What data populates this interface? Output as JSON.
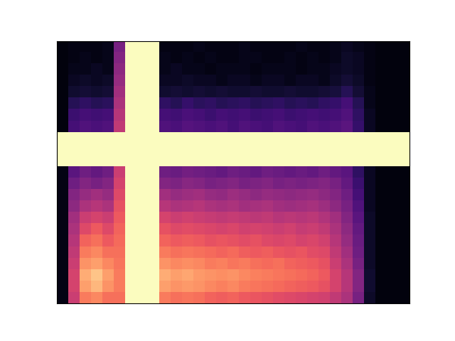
{
  "chart_data": {
    "type": "heatmap",
    "color": "magma",
    "tick_labels": false,
    "color_range": [
      0,
      80
    ],
    "cells": [
      [
        2,
        3,
        3,
        3,
        4,
        28,
        80,
        80,
        80,
        3,
        3,
        3,
        4,
        3,
        3,
        3,
        4,
        3,
        3,
        3,
        3,
        4,
        3,
        3,
        4,
        5,
        4,
        3,
        2,
        2,
        2
      ],
      [
        2,
        3,
        4,
        3,
        4,
        30,
        80,
        80,
        80,
        4,
        3,
        4,
        3,
        4,
        3,
        3,
        4,
        4,
        3,
        3,
        4,
        3,
        4,
        3,
        4,
        6,
        5,
        3,
        2,
        2,
        2
      ],
      [
        2,
        4,
        4,
        5,
        4,
        32,
        80,
        80,
        80,
        4,
        5,
        4,
        4,
        3,
        4,
        4,
        4,
        3,
        4,
        4,
        4,
        3,
        4,
        4,
        5,
        6,
        5,
        3,
        2,
        2,
        2
      ],
      [
        2,
        5,
        6,
        5,
        6,
        34,
        80,
        80,
        80,
        5,
        5,
        6,
        5,
        5,
        4,
        5,
        5,
        4,
        5,
        5,
        4,
        5,
        5,
        4,
        6,
        8,
        6,
        3,
        2,
        2,
        2
      ],
      [
        2,
        7,
        8,
        7,
        8,
        36,
        80,
        80,
        80,
        7,
        8,
        7,
        8,
        7,
        8,
        7,
        7,
        8,
        7,
        7,
        8,
        7,
        7,
        8,
        9,
        12,
        8,
        4,
        2,
        2,
        2
      ],
      [
        2,
        12,
        14,
        12,
        13,
        38,
        80,
        80,
        80,
        14,
        12,
        15,
        13,
        14,
        12,
        13,
        14,
        12,
        13,
        14,
        12,
        13,
        12,
        14,
        15,
        18,
        12,
        4,
        2,
        2,
        2
      ],
      [
        2,
        16,
        18,
        17,
        18,
        40,
        80,
        80,
        80,
        18,
        17,
        19,
        18,
        16,
        18,
        17,
        18,
        16,
        17,
        18,
        16,
        17,
        18,
        17,
        18,
        20,
        14,
        5,
        2,
        2,
        2
      ],
      [
        2,
        18,
        20,
        19,
        20,
        42,
        80,
        80,
        80,
        20,
        19,
        21,
        20,
        19,
        20,
        18,
        20,
        19,
        18,
        20,
        19,
        18,
        20,
        19,
        20,
        22,
        15,
        5,
        2,
        2,
        2
      ],
      [
        80,
        80,
        80,
        80,
        80,
        80,
        80,
        80,
        80,
        80,
        80,
        80,
        80,
        80,
        80,
        80,
        80,
        80,
        80,
        80,
        80,
        80,
        80,
        80,
        80,
        80,
        80,
        80,
        80,
        80,
        80
      ],
      [
        80,
        80,
        80,
        80,
        80,
        80,
        80,
        80,
        80,
        80,
        80,
        80,
        80,
        80,
        80,
        80,
        80,
        80,
        80,
        80,
        80,
        80,
        80,
        80,
        80,
        80,
        80,
        80,
        80,
        80,
        80
      ],
      [
        80,
        80,
        80,
        80,
        80,
        80,
        80,
        80,
        80,
        80,
        80,
        80,
        80,
        80,
        80,
        80,
        80,
        80,
        80,
        80,
        80,
        80,
        80,
        80,
        80,
        80,
        80,
        80,
        80,
        80,
        80
      ],
      [
        3,
        22,
        26,
        24,
        26,
        44,
        80,
        80,
        80,
        26,
        25,
        27,
        26,
        25,
        24,
        26,
        25,
        24,
        26,
        25,
        24,
        25,
        24,
        26,
        24,
        22,
        14,
        5,
        2,
        2,
        2
      ],
      [
        3,
        26,
        30,
        28,
        30,
        46,
        80,
        80,
        80,
        30,
        29,
        31,
        30,
        28,
        29,
        30,
        28,
        29,
        30,
        28,
        29,
        28,
        29,
        30,
        28,
        24,
        16,
        5,
        2,
        2,
        2
      ],
      [
        3,
        30,
        34,
        36,
        34,
        48,
        80,
        80,
        80,
        36,
        34,
        35,
        36,
        34,
        33,
        35,
        34,
        32,
        34,
        33,
        32,
        33,
        34,
        32,
        30,
        26,
        18,
        5,
        2,
        2,
        2
      ],
      [
        3,
        32,
        38,
        40,
        38,
        50,
        80,
        80,
        80,
        40,
        38,
        39,
        40,
        38,
        37,
        38,
        36,
        37,
        38,
        36,
        35,
        36,
        37,
        35,
        32,
        28,
        20,
        5,
        2,
        2,
        2
      ],
      [
        3,
        36,
        44,
        46,
        44,
        52,
        80,
        80,
        80,
        46,
        44,
        45,
        44,
        43,
        42,
        43,
        42,
        41,
        42,
        40,
        41,
        40,
        41,
        39,
        36,
        30,
        22,
        6,
        2,
        2,
        2
      ],
      [
        3,
        38,
        48,
        52,
        48,
        54,
        80,
        80,
        80,
        50,
        48,
        49,
        48,
        47,
        46,
        47,
        45,
        46,
        45,
        44,
        45,
        43,
        44,
        42,
        38,
        32,
        24,
        6,
        2,
        2,
        2
      ],
      [
        3,
        40,
        54,
        56,
        52,
        55,
        80,
        80,
        80,
        54,
        52,
        53,
        52,
        50,
        51,
        50,
        49,
        50,
        48,
        47,
        48,
        46,
        47,
        45,
        40,
        34,
        25,
        6,
        2,
        2,
        2
      ],
      [
        3,
        42,
        58,
        60,
        56,
        56,
        80,
        80,
        80,
        58,
        56,
        57,
        56,
        55,
        54,
        55,
        53,
        52,
        53,
        51,
        50,
        51,
        49,
        48,
        42,
        36,
        26,
        6,
        2,
        2,
        2
      ],
      [
        3,
        44,
        62,
        64,
        60,
        57,
        80,
        80,
        80,
        62,
        60,
        61,
        60,
        58,
        59,
        57,
        58,
        56,
        55,
        56,
        54,
        53,
        52,
        50,
        44,
        38,
        28,
        6,
        2,
        2,
        2
      ],
      [
        3,
        46,
        66,
        70,
        64,
        58,
        80,
        80,
        80,
        66,
        64,
        65,
        63,
        62,
        61,
        62,
        60,
        59,
        58,
        57,
        56,
        55,
        54,
        52,
        46,
        40,
        30,
        7,
        2,
        2,
        2
      ],
      [
        3,
        46,
        64,
        68,
        62,
        58,
        80,
        80,
        80,
        64,
        62,
        63,
        62,
        60,
        59,
        60,
        58,
        57,
        56,
        55,
        54,
        53,
        52,
        50,
        46,
        40,
        30,
        7,
        2,
        2,
        2
      ],
      [
        3,
        44,
        58,
        60,
        56,
        56,
        80,
        80,
        80,
        58,
        56,
        57,
        56,
        54,
        53,
        54,
        52,
        51,
        50,
        49,
        48,
        47,
        46,
        45,
        42,
        38,
        28,
        6,
        2,
        2,
        2
      ]
    ]
  }
}
